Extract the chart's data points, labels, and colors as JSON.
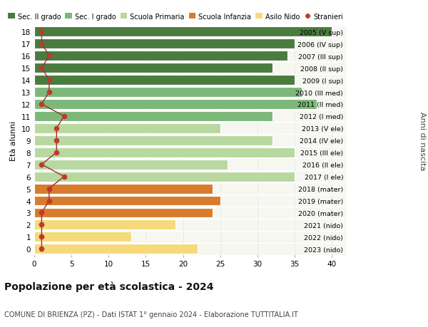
{
  "ages": [
    18,
    17,
    16,
    15,
    14,
    13,
    12,
    11,
    10,
    9,
    8,
    7,
    6,
    5,
    4,
    3,
    2,
    1,
    0
  ],
  "bar_values": [
    40,
    35,
    34,
    32,
    35,
    36,
    38,
    32,
    25,
    32,
    35,
    26,
    35,
    24,
    25,
    24,
    19,
    13,
    22
  ],
  "stranieri": [
    1,
    1,
    2,
    1,
    2,
    2,
    1,
    4,
    3,
    3,
    3,
    1,
    4,
    2,
    2,
    1,
    1,
    1,
    1
  ],
  "right_labels": [
    "2005 (V sup)",
    "2006 (IV sup)",
    "2007 (III sup)",
    "2008 (II sup)",
    "2009 (I sup)",
    "2010 (III med)",
    "2011 (II med)",
    "2012 (I med)",
    "2013 (V ele)",
    "2014 (IV ele)",
    "2015 (III ele)",
    "2016 (II ele)",
    "2017 (I ele)",
    "2018 (mater)",
    "2019 (mater)",
    "2020 (mater)",
    "2021 (nido)",
    "2022 (nido)",
    "2023 (nido)"
  ],
  "bar_colors": [
    "#4a7c3f",
    "#4a7c3f",
    "#4a7c3f",
    "#4a7c3f",
    "#4a7c3f",
    "#7db87a",
    "#7db87a",
    "#7db87a",
    "#b8d8a0",
    "#b8d8a0",
    "#b8d8a0",
    "#b8d8a0",
    "#b8d8a0",
    "#d97b2c",
    "#d97b2c",
    "#d97b2c",
    "#f5d97a",
    "#f5d97a",
    "#f5d97a"
  ],
  "legend_labels": [
    "Sec. II grado",
    "Sec. I grado",
    "Scuola Primaria",
    "Scuola Infanzia",
    "Asilo Nido",
    "Stranieri"
  ],
  "legend_colors": [
    "#4a7c3f",
    "#7db87a",
    "#b8d8a0",
    "#d97b2c",
    "#f5d97a",
    "#c0392b"
  ],
  "title": "Popolazione per età scolastica - 2024",
  "subtitle": "COMUNE DI BRIENZA (PZ) - Dati ISTAT 1° gennaio 2024 - Elaborazione TUTTITALIA.IT",
  "ylabel": "Età alunni",
  "right_ylabel": "Anni di nascita",
  "xlim": [
    0,
    42
  ],
  "plot_bg_color": "#f7f7f2",
  "background_color": "#ffffff",
  "stranieri_color": "#c0392b",
  "stranieri_line_color": "#9b3030",
  "grid_color": "#ffffff",
  "xgrid_color": "#dddddd"
}
